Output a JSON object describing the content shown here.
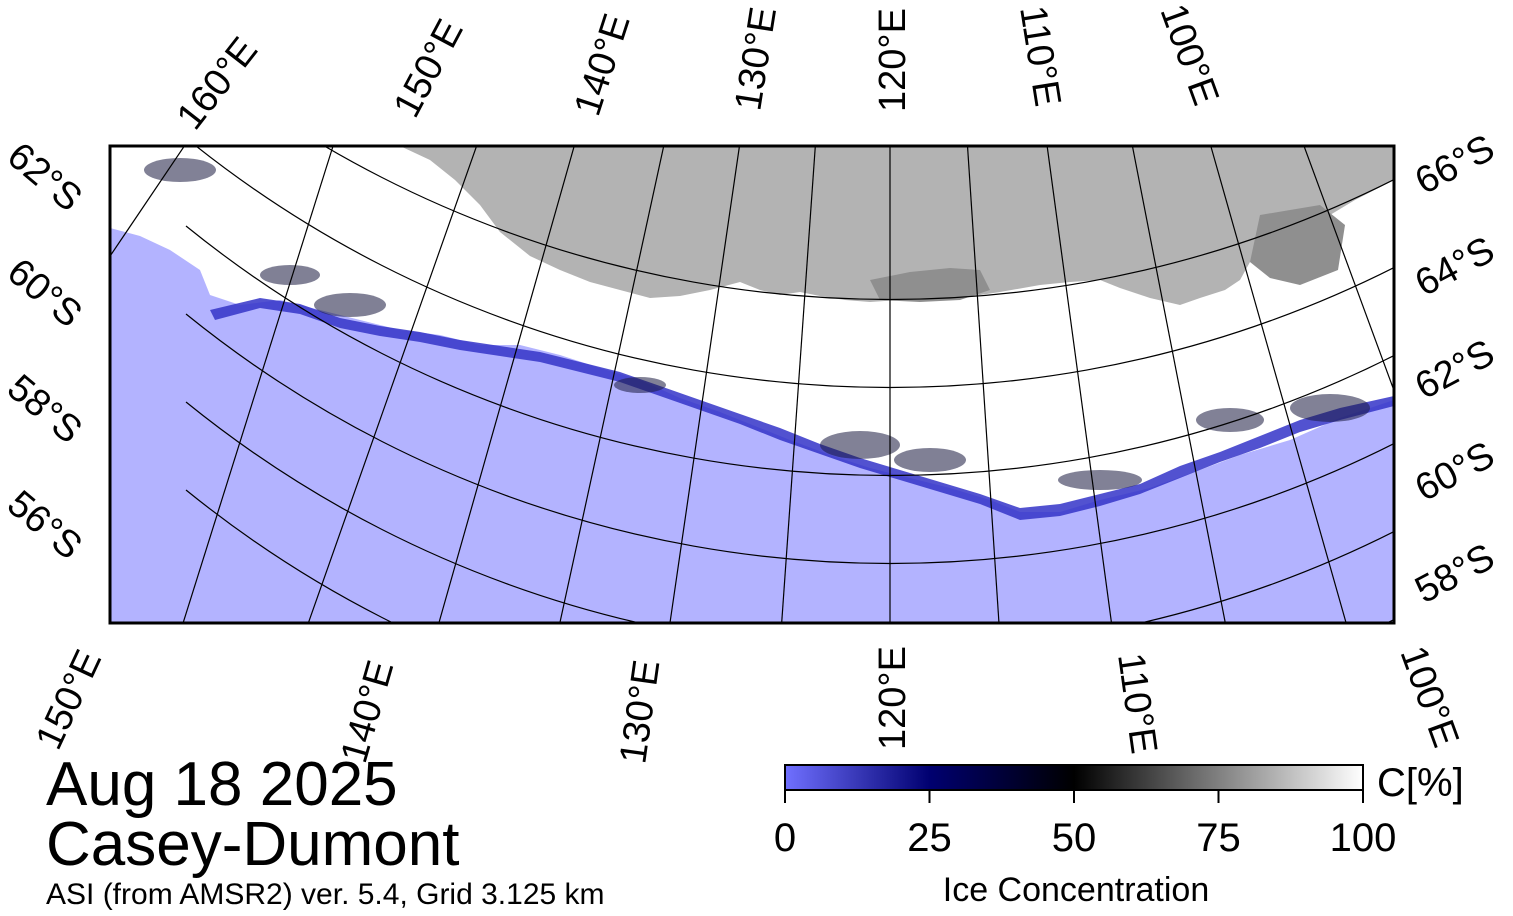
{
  "map": {
    "title_date": "Aug 18 2025",
    "title_region": "Casey-Dumont",
    "source_note": "ASI (from AMSR2) ver. 5.4,  Grid 3.125 km",
    "top_lon_labels": [
      "160°E",
      "150°E",
      "140°E",
      "130°E",
      "120°E",
      "110°E",
      "100°E"
    ],
    "bottom_lon_labels": [
      "150°E",
      "140°E",
      "130°E",
      "120°E",
      "110°E",
      "100°E"
    ],
    "left_lat_labels": [
      "62°S",
      "60°S",
      "58°S",
      "56°S"
    ],
    "right_lat_labels": [
      "66°S",
      "64°S",
      "62°S",
      "60°S",
      "58°S"
    ],
    "colors": {
      "ocean": "#b3b3ff",
      "land": "#b3b3b3",
      "ice": "#ffffff",
      "ice_edge": "#3a3ad8"
    }
  },
  "colorbar": {
    "title": "Ice Concentration",
    "unit": "C[%]",
    "ticks": [
      "0",
      "25",
      "50",
      "75",
      "100"
    ],
    "min": 0,
    "max": 100,
    "stops": [
      "#7070ff",
      "#000070",
      "#000000",
      "#808080",
      "#ffffff"
    ]
  }
}
